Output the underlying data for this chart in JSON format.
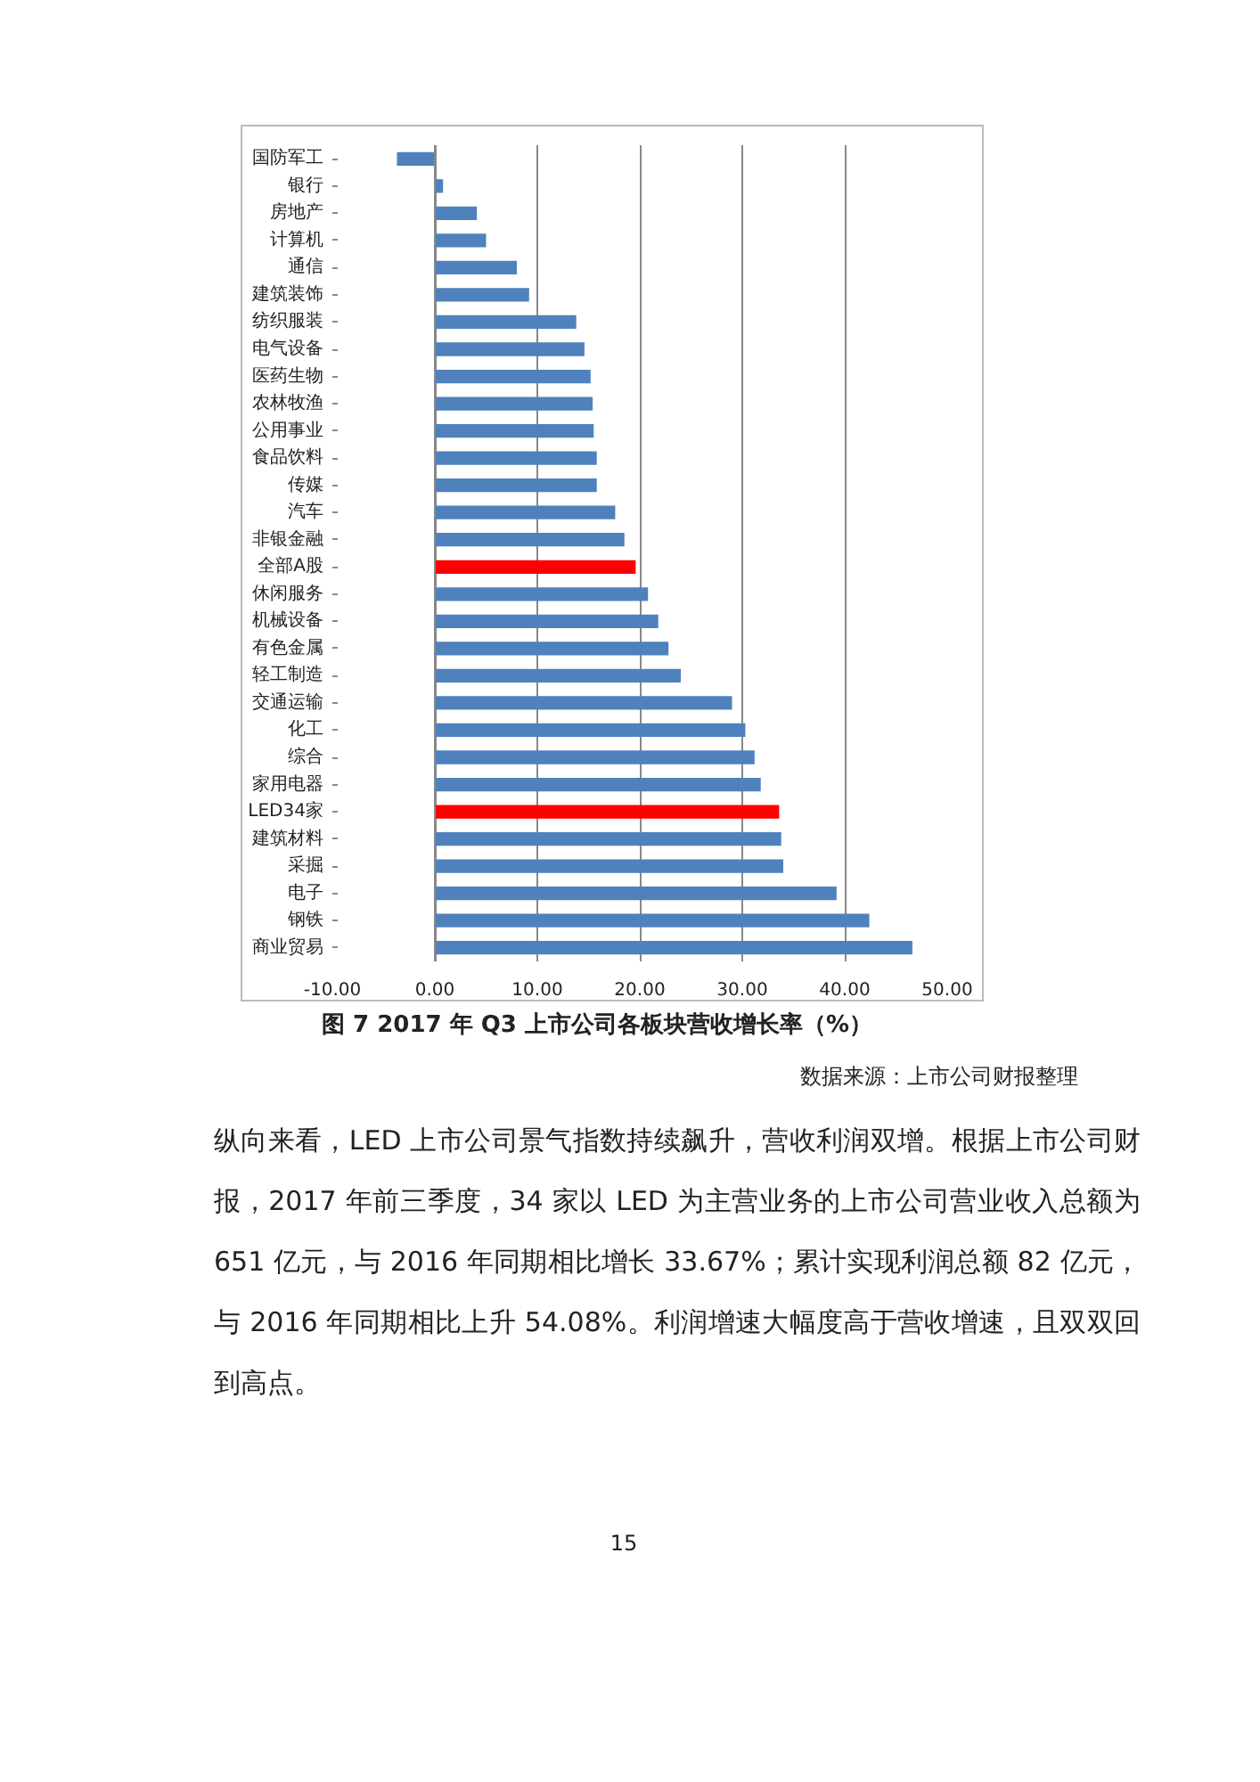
{
  "chart_data": {
    "type": "bar",
    "orientation": "horizontal",
    "title": "图 7 2017 年 Q3 上市公司各板块营收增长率（%）",
    "categories": [
      "国防军工",
      "银行",
      "房地产",
      "计算机",
      "通信",
      "建筑装饰",
      "纺织服装",
      "电气设备",
      "医药生物",
      "农林牧渔",
      "公用事业",
      "食品饮料",
      "传媒",
      "汽车",
      "非银金融",
      "全部A股",
      "休闲服务",
      "机械设备",
      "有色金属",
      "轻工制造",
      "交通运输",
      "化工",
      "综合",
      "家用电器",
      "LED34家",
      "建筑材料",
      "采掘",
      "电子",
      "钢铁",
      "商业贸易"
    ],
    "values": [
      -3.7,
      0.8,
      4.1,
      5.0,
      8.0,
      9.2,
      13.8,
      14.6,
      15.2,
      15.4,
      15.5,
      15.8,
      15.8,
      17.6,
      18.5,
      19.6,
      20.8,
      21.8,
      22.8,
      24.0,
      29.0,
      30.3,
      31.2,
      31.8,
      33.6,
      33.8,
      34.0,
      39.2,
      42.4,
      46.6
    ],
    "colors": [
      "#4f81bd",
      "#4f81bd",
      "#4f81bd",
      "#4f81bd",
      "#4f81bd",
      "#4f81bd",
      "#4f81bd",
      "#4f81bd",
      "#4f81bd",
      "#4f81bd",
      "#4f81bd",
      "#4f81bd",
      "#4f81bd",
      "#4f81bd",
      "#4f81bd",
      "#ff0000",
      "#4f81bd",
      "#4f81bd",
      "#4f81bd",
      "#4f81bd",
      "#4f81bd",
      "#4f81bd",
      "#4f81bd",
      "#4f81bd",
      "#ff0000",
      "#4f81bd",
      "#4f81bd",
      "#4f81bd",
      "#4f81bd",
      "#4f81bd"
    ],
    "xlim": [
      -10,
      50
    ],
    "xticks": [
      {
        "value": -10,
        "label": "-10.00"
      },
      {
        "value": 0,
        "label": "0.00"
      },
      {
        "value": 10,
        "label": "10.00"
      },
      {
        "value": 20,
        "label": "20.00"
      },
      {
        "value": 30,
        "label": "30.00"
      },
      {
        "value": 40,
        "label": "40.00"
      },
      {
        "value": 50,
        "label": "50.00"
      }
    ],
    "grid": "x",
    "annotations": [
      "数据来源：上市公司财报整理",
      "纵向来看，LED 上市公司景气指数持续飙升，营收利润双增。根据上市公司财报，2017 年前三季度，34 家以 LED 为主营业务的上市公司营业收入总额为 651 亿元，与 2016 年同期相比增长 33.67%；累计实现利润总额 82 亿元，与 2016 年同期相比上升 54.08%。利润增速大幅度高于营收增速，且双双回到高点。",
      "15"
    ]
  }
}
